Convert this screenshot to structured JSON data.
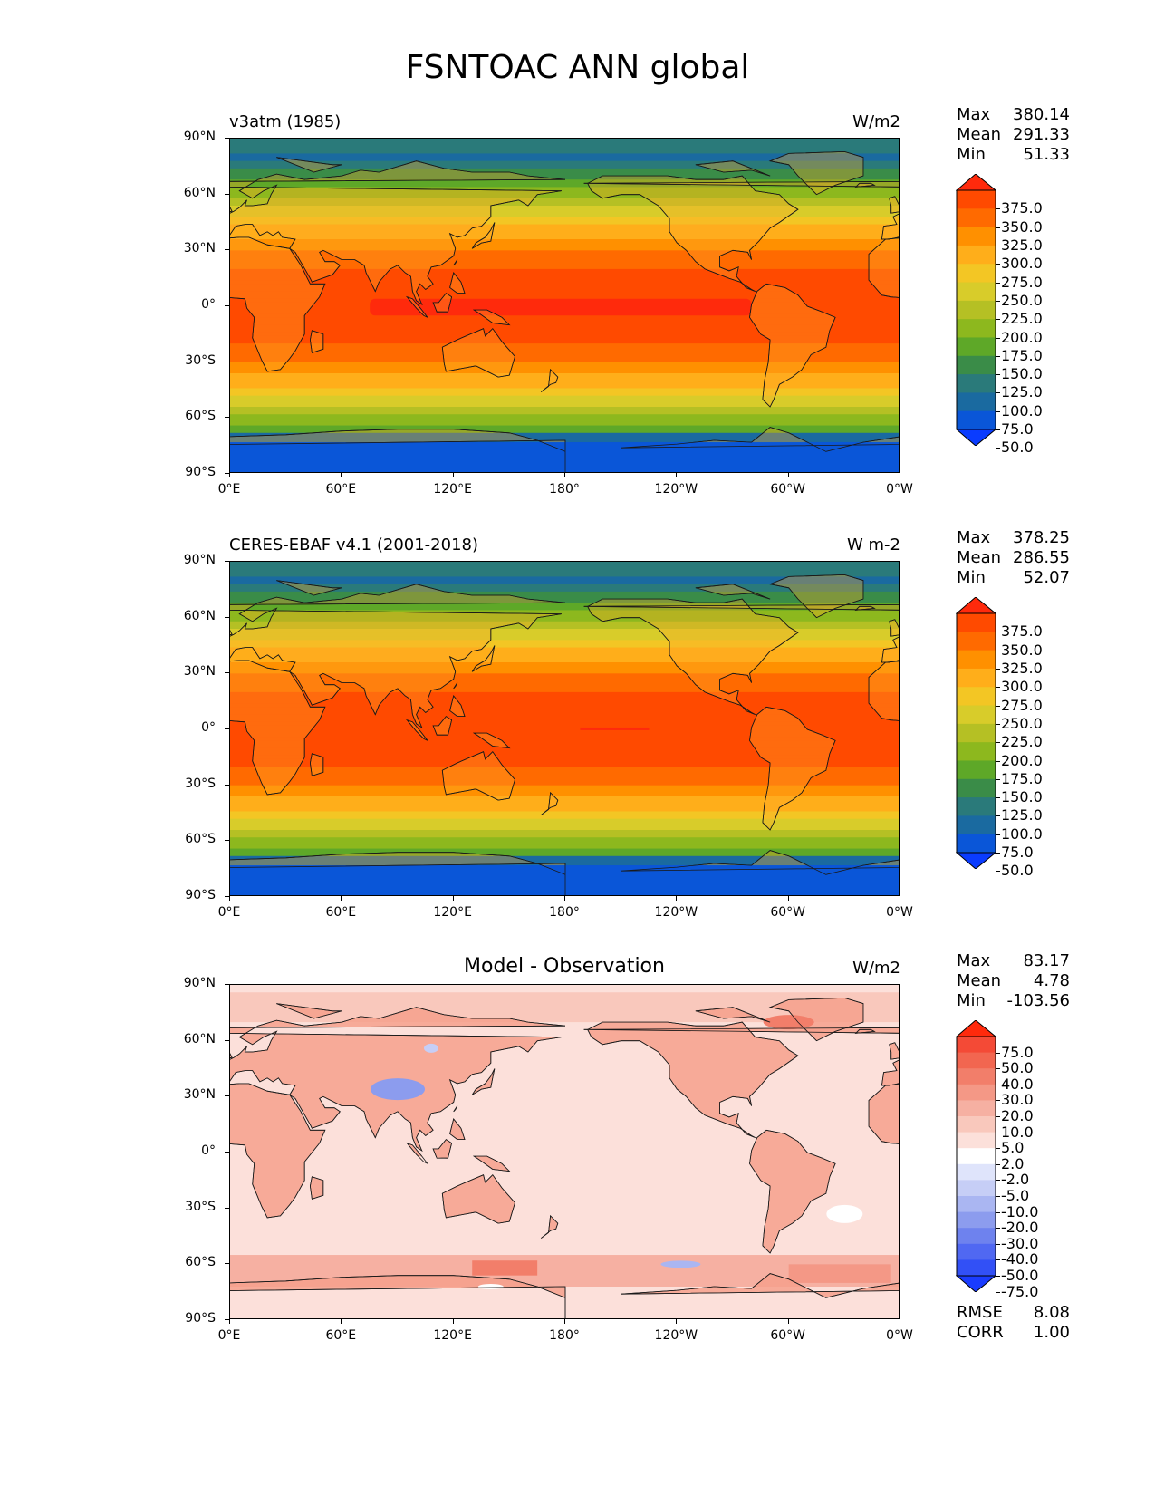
{
  "title": "FSNTOAC ANN global",
  "axes": {
    "lat_labels": [
      "90°N",
      "60°N",
      "30°N",
      "0°",
      "30°S",
      "60°S",
      "90°S"
    ],
    "lon_labels": [
      "0°E",
      "60°E",
      "120°E",
      "180°",
      "120°W",
      "60°W",
      "0°W"
    ]
  },
  "panels": [
    {
      "label": "v3atm (1985)",
      "units": "W/m2",
      "stats": {
        "max_label": "Max",
        "max": "380.14",
        "mean_label": "Mean",
        "mean": "291.33",
        "min_label": "Min",
        "min": "51.33"
      },
      "colorbar": {
        "levels": [
          "375.0",
          "350.0",
          "325.0",
          "300.0",
          "275.0",
          "250.0",
          "225.0",
          "200.0",
          "175.0",
          "150.0",
          "125.0",
          "100.0",
          "75.0",
          "50.0"
        ],
        "colors": [
          "#ff2a0c",
          "#ff4a00",
          "#ff6a00",
          "#ff9000",
          "#ffae1a",
          "#f3c624",
          "#d8cc2a",
          "#b5c024",
          "#8db81e",
          "#5ea828",
          "#3a8c48",
          "#2a7a7a",
          "#1a6aa0",
          "#0a56d8",
          "#0a3cff"
        ]
      },
      "field": "full"
    },
    {
      "label": "CERES-EBAF v4.1 (2001-2018)",
      "units": "W m-2",
      "stats": {
        "max_label": "Max",
        "max": "378.25",
        "mean_label": "Mean",
        "mean": "286.55",
        "min_label": "Min",
        "min": "52.07"
      },
      "colorbar": {
        "levels": [
          "375.0",
          "350.0",
          "325.0",
          "300.0",
          "275.0",
          "250.0",
          "225.0",
          "200.0",
          "175.0",
          "150.0",
          "125.0",
          "100.0",
          "75.0",
          "50.0"
        ],
        "colors": [
          "#ff2a0c",
          "#ff4a00",
          "#ff6a00",
          "#ff9000",
          "#ffae1a",
          "#f3c624",
          "#d8cc2a",
          "#b5c024",
          "#8db81e",
          "#5ea828",
          "#3a8c48",
          "#2a7a7a",
          "#1a6aa0",
          "#0a56d8",
          "#0a3cff"
        ]
      },
      "field": "full"
    },
    {
      "label": "Model - Observation",
      "units": "W/m2",
      "stats": {
        "max_label": "Max",
        "max": "83.17",
        "mean_label": "Mean",
        "mean": "4.78",
        "min_label": "Min",
        "min": "-103.56"
      },
      "colorbar": {
        "levels": [
          "75.0",
          "50.0",
          "40.0",
          "30.0",
          "20.0",
          "10.0",
          "5.0",
          "2.0",
          "-2.0",
          "-5.0",
          "-10.0",
          "-20.0",
          "-30.0",
          "-40.0",
          "-50.0",
          "-75.0"
        ],
        "colors": [
          "#ff2a0c",
          "#f44a36",
          "#f26650",
          "#f27e6a",
          "#f49886",
          "#f6b0a2",
          "#f9c8bc",
          "#fce0da",
          "#ffffff",
          "#dfe4fb",
          "#c6cef6",
          "#aab6f2",
          "#8c9cee",
          "#6e82ee",
          "#5068f2",
          "#3250f6",
          "#1a3cff"
        ]
      },
      "field": "diff",
      "footer": {
        "rmse_label": "RMSE",
        "rmse": "8.08",
        "corr_label": "CORR",
        "corr": "1.00"
      }
    }
  ]
}
